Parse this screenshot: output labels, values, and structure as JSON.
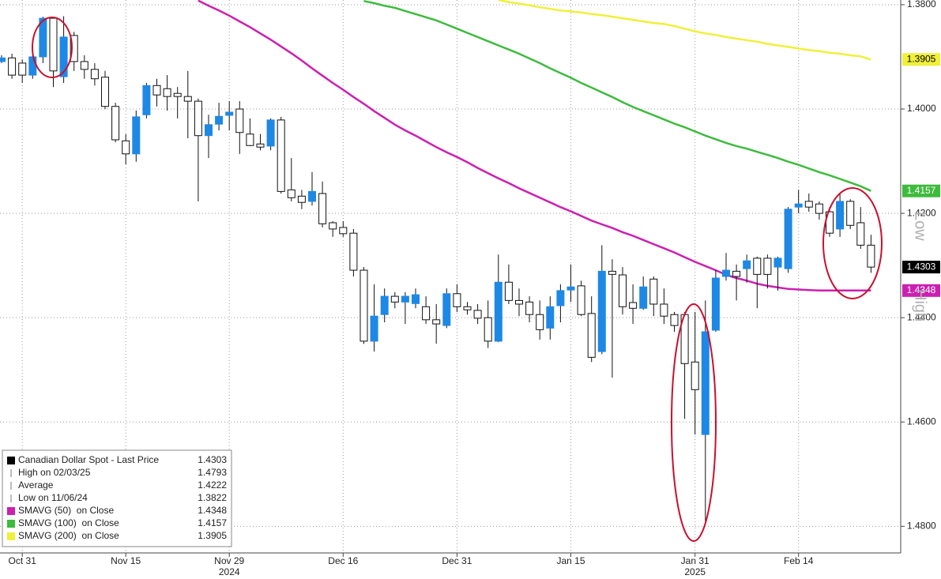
{
  "chart_data": {
    "type": "candlestick",
    "inverted": true,
    "ylim": [
      1.3791,
      1.4851
    ],
    "yticks": [
      {
        "value": 1.38,
        "label": "1.3800"
      },
      {
        "value": 1.4,
        "label": "1.4000"
      },
      {
        "value": 1.42,
        "label": "1.4200"
      },
      {
        "value": 1.44,
        "label": "1.4400"
      },
      {
        "value": 1.46,
        "label": "1.4600"
      },
      {
        "value": 1.48,
        "label": "1.4800"
      }
    ],
    "grid": true,
    "up_color": "#ffffff",
    "down_color": "#1e88e5",
    "categories": [
      null,
      null,
      "Oct 31",
      null,
      null,
      null,
      null,
      null,
      null,
      null,
      null,
      null,
      "Nov 15",
      null,
      null,
      null,
      null,
      null,
      null,
      null,
      null,
      null,
      "Nov 29",
      null,
      null,
      null,
      null,
      null,
      null,
      null,
      null,
      null,
      null,
      "Dec 16",
      null,
      null,
      null,
      null,
      null,
      null,
      null,
      null,
      null,
      null,
      "Dec 31",
      null,
      null,
      null,
      null,
      null,
      null,
      null,
      null,
      null,
      null,
      "Jan 15",
      null,
      null,
      null,
      null,
      null,
      null,
      null,
      null,
      null,
      null,
      null,
      "Jan 31",
      null,
      null,
      null,
      null,
      null,
      null,
      null,
      null,
      null,
      "Feb 14",
      null,
      null,
      null,
      null,
      null,
      null,
      null
    ],
    "year_labels": [
      {
        "label": "2024",
        "category": "Nov 29"
      },
      {
        "label": "2025",
        "category": "Jan 31"
      }
    ],
    "candles": {
      "open": [
        1.3909,
        1.3902,
        1.3912,
        1.3935,
        1.39,
        1.3826,
        1.3938,
        1.3859,
        1.3909,
        1.3924,
        1.3939,
        1.3995,
        1.4061,
        1.4086,
        1.4011,
        1.3955,
        1.3961,
        1.397,
        1.3976,
        1.3985,
        1.4051,
        1.4029,
        1.4012,
        1.4,
        1.4048,
        1.4067,
        1.4071,
        1.4021,
        1.4155,
        1.4167,
        1.4177,
        1.4162,
        1.4218,
        1.4227,
        1.4238,
        1.4309,
        1.4445,
        1.4394,
        1.4359,
        1.437,
        1.4373,
        1.4379,
        1.4404,
        1.4415,
        1.4354,
        1.4379,
        1.4386,
        1.44,
        1.4445,
        1.4332,
        1.4367,
        1.437,
        1.4394,
        1.442,
        1.4377,
        1.4347,
        1.4339,
        1.4392,
        1.4465,
        1.4311,
        1.4318,
        1.4371,
        1.4382,
        1.4326,
        1.4374,
        1.4394,
        1.4394,
        1.4485,
        1.4624,
        1.4424,
        1.4321,
        1.4311,
        1.4306,
        1.4286,
        1.4286,
        1.4303,
        1.4306,
        1.4188,
        1.4177,
        1.4182,
        1.4197,
        1.423,
        1.4177,
        1.4218,
        1.4261
      ],
      "high": [
        1.3912,
        1.3942,
        1.395,
        1.3942,
        1.3912,
        1.3958,
        1.395,
        1.3927,
        1.3942,
        1.3955,
        1.4,
        1.4064,
        1.4106,
        1.4101,
        1.4018,
        1.3995,
        1.4003,
        1.4018,
        1.4056,
        1.4177,
        1.4094,
        1.4041,
        1.4041,
        1.4086,
        1.4071,
        1.4079,
        1.4079,
        1.4162,
        1.4177,
        1.4192,
        1.4185,
        1.4227,
        1.4245,
        1.4245,
        1.4321,
        1.445,
        1.4465,
        1.4409,
        1.4382,
        1.4412,
        1.4382,
        1.4412,
        1.445,
        1.442,
        1.4389,
        1.4394,
        1.4412,
        1.4458,
        1.4447,
        1.4374,
        1.4397,
        1.4409,
        1.4442,
        1.4442,
        1.4409,
        1.437,
        1.4397,
        1.4485,
        1.447,
        1.4515,
        1.4394,
        1.4412,
        1.4385,
        1.4397,
        1.4412,
        1.4427,
        1.4594,
        1.4624,
        1.4793,
        1.4427,
        1.4329,
        1.4367,
        1.4333,
        1.4382,
        1.4344,
        1.4348,
        1.4314,
        1.42,
        1.4197,
        1.4212,
        1.4245,
        1.4245,
        1.423,
        1.4268,
        1.4314
      ],
      "low": [
        1.3897,
        1.3894,
        1.3905,
        1.3897,
        1.3823,
        1.3825,
        1.3822,
        1.3852,
        1.3897,
        1.3912,
        1.3927,
        1.3988,
        1.4048,
        1.4003,
        1.395,
        1.3942,
        1.3935,
        1.3958,
        1.3927,
        1.398,
        1.4011,
        1.3988,
        1.3985,
        1.3985,
        1.4018,
        1.4048,
        1.4018,
        1.4015,
        1.4094,
        1.4155,
        1.4121,
        1.4139,
        1.4215,
        1.4215,
        1.423,
        1.4303,
        1.4336,
        1.4344,
        1.4351,
        1.4351,
        1.4344,
        1.4359,
        1.4374,
        1.4344,
        1.4336,
        1.437,
        1.4374,
        1.4367,
        1.4279,
        1.4298,
        1.4344,
        1.4359,
        1.4367,
        1.4359,
        1.4336,
        1.4298,
        1.4329,
        1.4359,
        1.4261,
        1.4288,
        1.4303,
        1.4336,
        1.4321,
        1.4321,
        1.4344,
        1.4389,
        1.4389,
        1.4389,
        1.4367,
        1.4309,
        1.4276,
        1.4298,
        1.4279,
        1.4283,
        1.4279,
        1.4283,
        1.4188,
        1.4155,
        1.4162,
        1.4177,
        1.4188,
        1.4162,
        1.4173,
        1.4188,
        1.4241
      ],
      "close": [
        1.3902,
        1.3935,
        1.3935,
        1.39,
        1.3826,
        1.3927,
        1.3862,
        1.3909,
        1.3924,
        1.3942,
        1.3995,
        1.4059,
        1.4086,
        1.4015,
        1.3955,
        1.3973,
        1.3976,
        1.3976,
        1.3985,
        1.4051,
        1.403,
        1.4014,
        1.4006,
        1.4045,
        1.407,
        1.4073,
        1.4021,
        1.4158,
        1.417,
        1.4179,
        1.4158,
        1.422,
        1.423,
        1.4239,
        1.4309,
        1.4445,
        1.4397,
        1.4359,
        1.437,
        1.4359,
        1.4356,
        1.4404,
        1.4412,
        1.4354,
        1.4379,
        1.4385,
        1.4401,
        1.4445,
        1.4332,
        1.4367,
        1.4374,
        1.4394,
        1.4423,
        1.4379,
        1.4348,
        1.4341,
        1.4394,
        1.4476,
        1.4311,
        1.4317,
        1.4379,
        1.4382,
        1.4341,
        1.4374,
        1.4397,
        1.4415,
        1.4488,
        1.4538,
        1.4427,
        1.4324,
        1.4309,
        1.4321,
        1.4291,
        1.4317,
        1.4317,
        1.4286,
        1.4192,
        1.4182,
        1.4188,
        1.42,
        1.4238,
        1.4177,
        1.4223,
        1.4261,
        1.4303
      ]
    },
    "moving_averages": [
      {
        "color": "#cc1fb1",
        "values": [
          null,
          null,
          null,
          null,
          null,
          null,
          null,
          null,
          null,
          null,
          null,
          null,
          null,
          null,
          null,
          null,
          null,
          null,
          null,
          1.3792,
          1.3802,
          1.3811,
          1.3821,
          1.3832,
          1.3843,
          1.3855,
          1.3867,
          1.388,
          1.3893,
          1.3907,
          1.3922,
          1.3936,
          1.395,
          1.3963,
          1.3977,
          1.399,
          1.4004,
          1.4017,
          1.403,
          1.4041,
          1.4051,
          1.4062,
          1.4073,
          1.4083,
          1.4092,
          1.4102,
          1.4113,
          1.4123,
          1.4133,
          1.4142,
          1.4152,
          1.4161,
          1.417,
          1.4179,
          1.4188,
          1.4196,
          1.4205,
          1.4214,
          1.4221,
          1.4228,
          1.4236,
          1.4243,
          1.4251,
          1.4259,
          1.4267,
          1.4275,
          1.4284,
          1.4293,
          1.4301,
          1.4309,
          1.4318,
          1.4324,
          1.4329,
          1.4335,
          1.4339,
          1.4342,
          1.4345,
          1.4346,
          1.4347,
          1.4348,
          1.4348,
          1.4348,
          1.4348,
          1.4348,
          1.4348
        ]
      },
      {
        "color": "#3dbb3d",
        "values": [
          null,
          null,
          null,
          null,
          null,
          null,
          null,
          null,
          null,
          null,
          null,
          null,
          null,
          null,
          null,
          null,
          null,
          null,
          null,
          null,
          null,
          null,
          null,
          null,
          null,
          null,
          null,
          null,
          null,
          null,
          null,
          null,
          null,
          null,
          null,
          1.3793,
          1.3797,
          1.3802,
          1.3806,
          1.3812,
          1.3818,
          1.3824,
          1.383,
          1.3838,
          1.3846,
          1.3854,
          1.3862,
          1.387,
          1.3878,
          1.3886,
          1.3894,
          1.3903,
          1.3912,
          1.3922,
          1.3931,
          1.394,
          1.395,
          1.3959,
          1.3968,
          1.3977,
          1.3987,
          1.3996,
          1.4004,
          1.4012,
          1.402,
          1.4028,
          1.4035,
          1.4043,
          1.4051,
          1.4058,
          1.4065,
          1.4071,
          1.4076,
          1.4082,
          1.4088,
          1.4094,
          1.4101,
          1.4107,
          1.4114,
          1.4121,
          1.4127,
          1.4134,
          1.4141,
          1.4148,
          1.4157
        ]
      },
      {
        "color": "#f0f03a",
        "values": [
          null,
          null,
          null,
          null,
          null,
          null,
          null,
          null,
          null,
          null,
          null,
          null,
          null,
          null,
          null,
          null,
          null,
          null,
          null,
          null,
          null,
          null,
          null,
          null,
          null,
          null,
          null,
          null,
          null,
          null,
          null,
          null,
          null,
          null,
          null,
          null,
          null,
          null,
          null,
          null,
          null,
          null,
          null,
          null,
          null,
          null,
          null,
          null,
          1.3791,
          1.3795,
          1.3798,
          1.3801,
          1.3805,
          1.3808,
          1.3811,
          1.3813,
          1.3815,
          1.3818,
          1.382,
          1.3823,
          1.3826,
          1.3829,
          1.3832,
          1.3835,
          1.3837,
          1.3841,
          1.3846,
          1.3851,
          1.3855,
          1.3858,
          1.3862,
          1.3865,
          1.3868,
          1.3871,
          1.3875,
          1.3878,
          1.3881,
          1.3884,
          1.3887,
          1.3889,
          1.3892,
          1.3894,
          1.3897,
          1.3899,
          1.3905
        ]
      }
    ],
    "legend_corner": "bottom-left",
    "legend": [
      {
        "label": "Canadian Dollar Spot - Last Price",
        "value": 1.4303,
        "color": "#000000",
        "tag": true
      },
      {
        "label": "High on 02/03/25",
        "value": 1.4793
      },
      {
        "label": "Average",
        "value": 1.4222
      },
      {
        "label": "Low on 11/06/24",
        "value": 1.3822
      },
      {
        "label": "SMAVG (50)  on Close",
        "value": 1.4348,
        "color": "#cc1fb1",
        "tag": true
      },
      {
        "label": "SMAVG (100)  on Close",
        "value": 1.4157,
        "color": "#3dbb3d",
        "tag": true
      },
      {
        "label": "SMAVG (200)  on Close",
        "value": 1.3905,
        "color": "#f0f03a",
        "tag": true
      }
    ],
    "direction_labels": [
      "Low",
      "High"
    ]
  }
}
